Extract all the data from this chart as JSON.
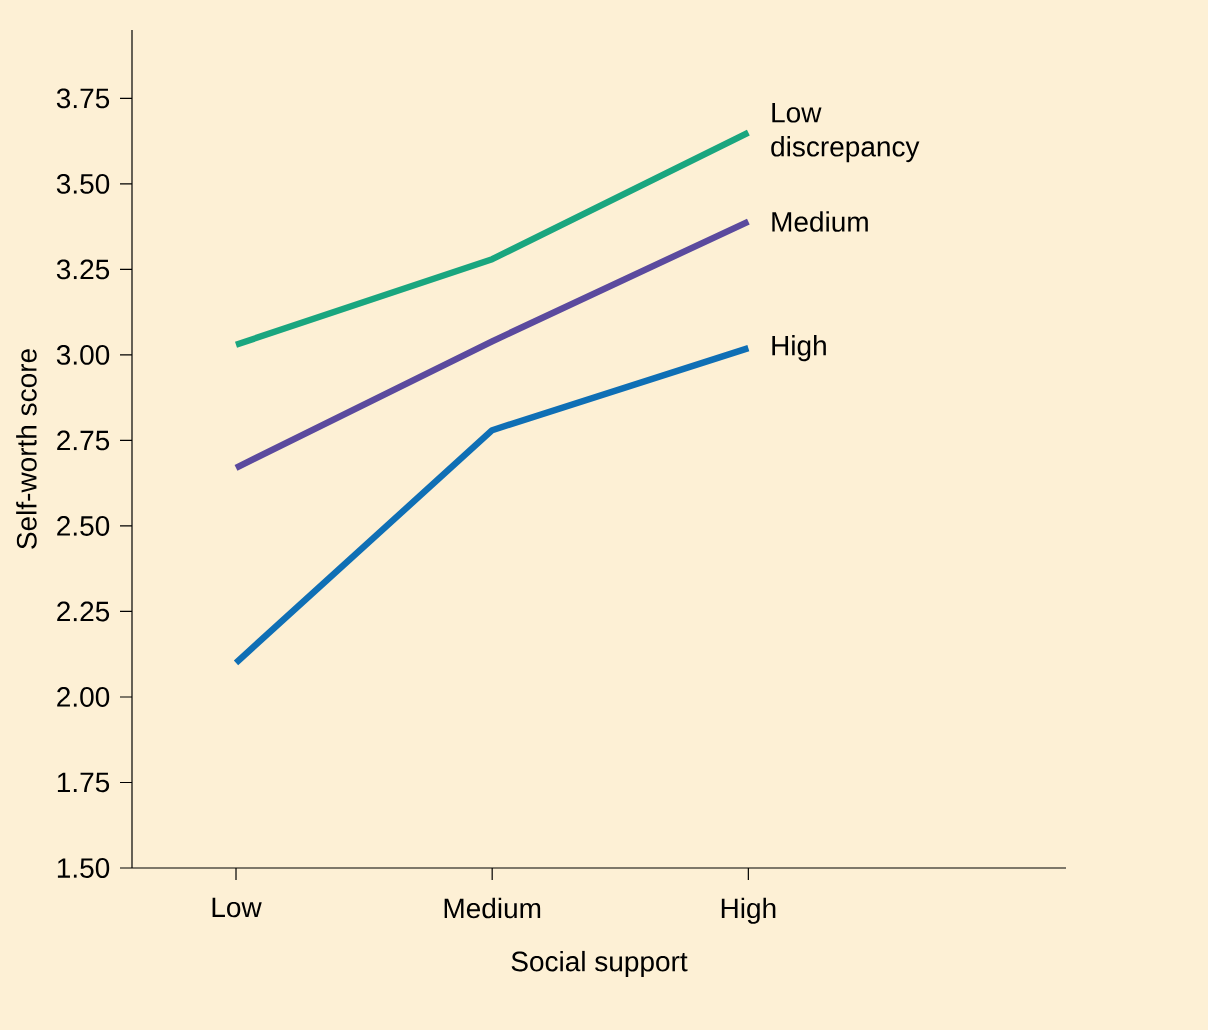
{
  "chart_data": {
    "type": "line",
    "xlabel": "Social support",
    "ylabel": "Self-worth score",
    "categories": [
      "Low",
      "Medium",
      "High"
    ],
    "ylim": [
      1.5,
      3.95
    ],
    "yticks": [
      {
        "value": 1.5,
        "label": "1.50"
      },
      {
        "value": 1.75,
        "label": "1.75"
      },
      {
        "value": 2.0,
        "label": "2.00"
      },
      {
        "value": 2.25,
        "label": "2.25"
      },
      {
        "value": 2.5,
        "label": "2.50"
      },
      {
        "value": 2.75,
        "label": "2.75"
      },
      {
        "value": 3.0,
        "label": "3.00"
      },
      {
        "value": 3.25,
        "label": "3.25"
      },
      {
        "value": 3.5,
        "label": "3.50"
      },
      {
        "value": 3.75,
        "label": "3.75"
      }
    ],
    "series": [
      {
        "name": "Low discrepancy",
        "color": "#1aa67f",
        "values": [
          3.03,
          3.28,
          3.65
        ]
      },
      {
        "name": "Medium",
        "color": "#5b4a9e",
        "values": [
          2.67,
          3.04,
          3.39
        ]
      },
      {
        "name": "High",
        "color": "#0f6fb5",
        "values": [
          2.1,
          2.78,
          3.02
        ]
      }
    ]
  }
}
